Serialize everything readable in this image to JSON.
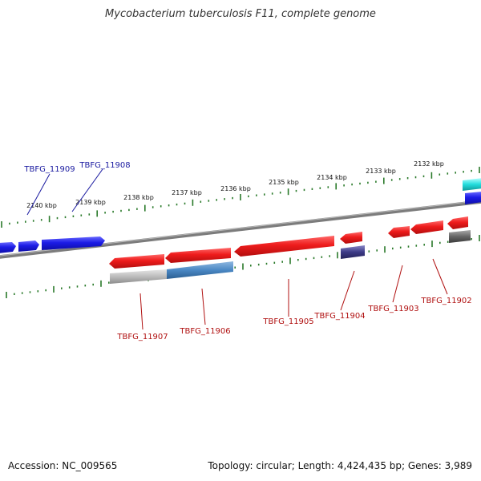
{
  "title": "Mycobacterium tuberculosis F11, complete genome",
  "footer": {
    "accession": "Accession: NC_009565",
    "summary": "Topology: circular; Length: 4,424,435 bp; Genes: 3,989"
  },
  "colors": {
    "forward_gene": "#1f1fe0",
    "reverse_gene": "#e01818",
    "backbone": "#7a7a7a",
    "ticks": "#2a7a2a",
    "forward_label": "#1a1aa0",
    "reverse_label": "#b01010",
    "cyan_feature": "#22dddd"
  },
  "scale_labels": [
    "2140 kbp",
    "2139 kbp",
    "2138 kbp",
    "2137 kbp",
    "2136 kbp",
    "2135 kbp",
    "2134 kbp",
    "2133 kbp",
    "2132 kbp"
  ],
  "gene_labels": {
    "forward": [
      "TBFG_11909",
      "TBFG_11908"
    ],
    "reverse": [
      "TBFG_11907",
      "TBFG_11906",
      "TBFG_11905",
      "TBFG_11904",
      "TBFG_11903",
      "TBFG_11902"
    ]
  }
}
